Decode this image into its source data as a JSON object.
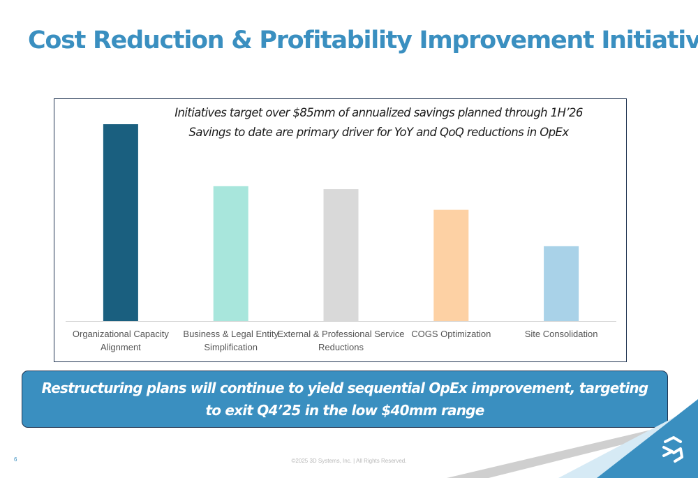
{
  "title": "Cost Reduction & Profitability Improvement Initiatives",
  "annotation": {
    "line1": "Initiatives target over $85mm of annualized savings planned through 1H’26",
    "line2": "Savings to date are primary driver for YoY and QoQ reductions in OpEx"
  },
  "banner": {
    "text": "Restructuring plans will continue to yield sequential OpEx improvement, targeting to exit Q4’25 in the low $40mm range"
  },
  "page_number": "6",
  "footer": "©2025 3D Systems, Inc. | All Rights Reserved.",
  "chart_data": {
    "type": "bar",
    "categories": [
      [
        "Organizational Capacity",
        "Alignment"
      ],
      [
        "Business & Legal Entity",
        "Simplification"
      ],
      [
        "External & Professional Service",
        "Reductions"
      ],
      [
        "COGS Optimization"
      ],
      [
        "Site Consolidation"
      ]
    ],
    "values": [
      100,
      68.5,
      67,
      56.5,
      38
    ],
    "colors": [
      "#1a5f7f",
      "#a8e6dc",
      "#d9d9d9",
      "#fdd1a4",
      "#a9d2e8"
    ],
    "value_axis_shown": false,
    "grid": false
  },
  "colors": {
    "title": "#3a8fc0",
    "banner_fill": "#3a8fc0",
    "banner_border": "#1f3350",
    "chart_border": "#1f3350",
    "corner_accent": "#3a8fc0"
  },
  "logo": {
    "icon": "3d-systems-logo-icon"
  }
}
